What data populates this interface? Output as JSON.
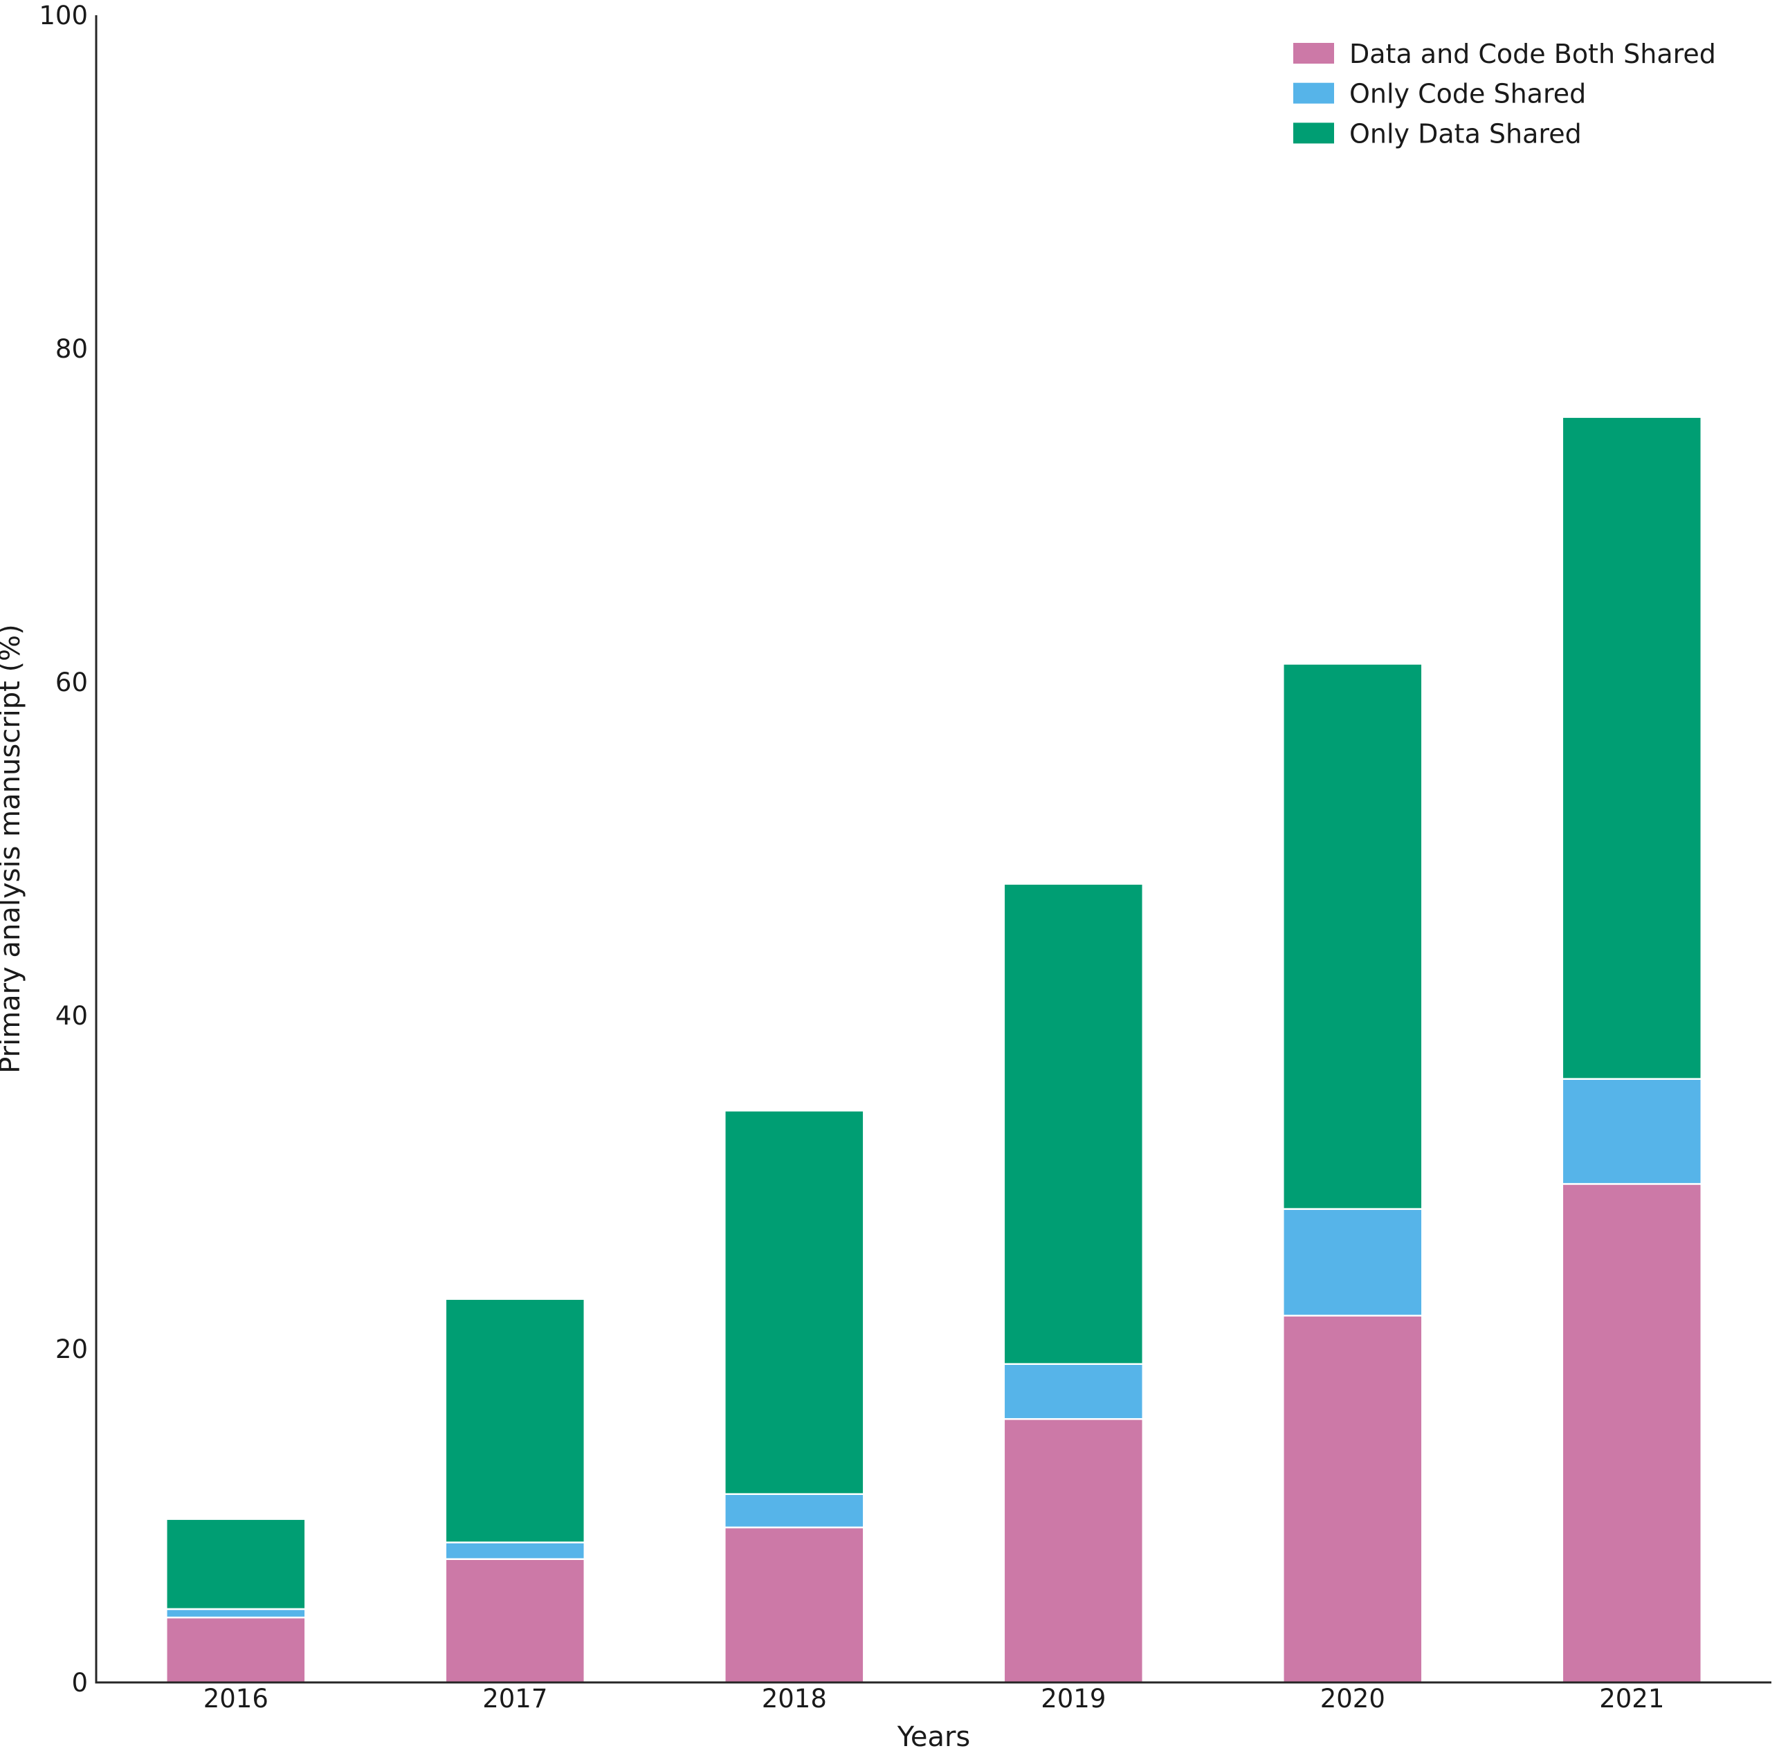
{
  "figure": {
    "background": "#ffffff",
    "axis_color": "#262626",
    "text_color": "#1a1a1a"
  },
  "chart_data": {
    "type": "bar",
    "stacked": true,
    "title": "",
    "xlabel": "Years",
    "ylabel": "Primary analysis manuscript (%)",
    "categories": [
      "2016",
      "2017",
      "2018",
      "2019",
      "2020",
      "2021"
    ],
    "series": [
      {
        "name": "Data and Code Both Shared",
        "color": "#CC79A7",
        "values": [
          3.9,
          7.4,
          9.3,
          15.8,
          22.0,
          29.9
        ]
      },
      {
        "name": "Only Code Shared",
        "color": "#56B4E9",
        "values": [
          0.5,
          1.0,
          2.0,
          3.3,
          6.4,
          6.3
        ]
      },
      {
        "name": "Only Data Shared",
        "color": "#009E73",
        "values": [
          5.4,
          14.6,
          23.0,
          28.8,
          32.7,
          39.7
        ]
      }
    ],
    "ylim": [
      0,
      100
    ],
    "yticks": [
      0,
      20,
      40,
      60,
      80,
      100
    ],
    "legend_position": "upper right",
    "grid": false,
    "bar_edge_color": "#ffffff"
  }
}
